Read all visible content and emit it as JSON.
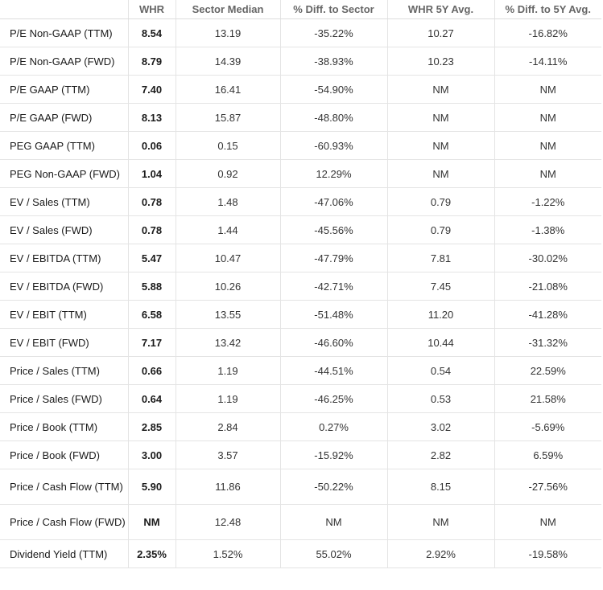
{
  "headers": [
    "",
    "WHR",
    "Sector Median",
    "% Diff. to Sector",
    "WHR 5Y Avg.",
    "% Diff. to 5Y Avg."
  ],
  "rows": [
    {
      "metric": "P/E Non-GAAP (TTM)",
      "whr": "8.54",
      "sector_median": "13.19",
      "diff_sector": "-35.22%",
      "avg_5y": "10.27",
      "diff_5y": "-16.82%"
    },
    {
      "metric": "P/E Non-GAAP (FWD)",
      "whr": "8.79",
      "sector_median": "14.39",
      "diff_sector": "-38.93%",
      "avg_5y": "10.23",
      "diff_5y": "-14.11%"
    },
    {
      "metric": "P/E GAAP (TTM)",
      "whr": "7.40",
      "sector_median": "16.41",
      "diff_sector": "-54.90%",
      "avg_5y": "NM",
      "diff_5y": "NM"
    },
    {
      "metric": "P/E GAAP (FWD)",
      "whr": "8.13",
      "sector_median": "15.87",
      "diff_sector": "-48.80%",
      "avg_5y": "NM",
      "diff_5y": "NM"
    },
    {
      "metric": "PEG GAAP (TTM)",
      "whr": "0.06",
      "sector_median": "0.15",
      "diff_sector": "-60.93%",
      "avg_5y": "NM",
      "diff_5y": "NM"
    },
    {
      "metric": "PEG Non-GAAP (FWD)",
      "whr": "1.04",
      "sector_median": "0.92",
      "diff_sector": "12.29%",
      "avg_5y": "NM",
      "diff_5y": "NM"
    },
    {
      "metric": "EV / Sales (TTM)",
      "whr": "0.78",
      "sector_median": "1.48",
      "diff_sector": "-47.06%",
      "avg_5y": "0.79",
      "diff_5y": "-1.22%"
    },
    {
      "metric": "EV / Sales (FWD)",
      "whr": "0.78",
      "sector_median": "1.44",
      "diff_sector": "-45.56%",
      "avg_5y": "0.79",
      "diff_5y": "-1.38%"
    },
    {
      "metric": "EV / EBITDA (TTM)",
      "whr": "5.47",
      "sector_median": "10.47",
      "diff_sector": "-47.79%",
      "avg_5y": "7.81",
      "diff_5y": "-30.02%"
    },
    {
      "metric": "EV / EBITDA (FWD)",
      "whr": "5.88",
      "sector_median": "10.26",
      "diff_sector": "-42.71%",
      "avg_5y": "7.45",
      "diff_5y": "-21.08%"
    },
    {
      "metric": "EV / EBIT (TTM)",
      "whr": "6.58",
      "sector_median": "13.55",
      "diff_sector": "-51.48%",
      "avg_5y": "11.20",
      "diff_5y": "-41.28%"
    },
    {
      "metric": "EV / EBIT (FWD)",
      "whr": "7.17",
      "sector_median": "13.42",
      "diff_sector": "-46.60%",
      "avg_5y": "10.44",
      "diff_5y": "-31.32%"
    },
    {
      "metric": "Price / Sales (TTM)",
      "whr": "0.66",
      "sector_median": "1.19",
      "diff_sector": "-44.51%",
      "avg_5y": "0.54",
      "diff_5y": "22.59%"
    },
    {
      "metric": "Price / Sales (FWD)",
      "whr": "0.64",
      "sector_median": "1.19",
      "diff_sector": "-46.25%",
      "avg_5y": "0.53",
      "diff_5y": "21.58%"
    },
    {
      "metric": "Price / Book (TTM)",
      "whr": "2.85",
      "sector_median": "2.84",
      "diff_sector": "0.27%",
      "avg_5y": "3.02",
      "diff_5y": "-5.69%"
    },
    {
      "metric": "Price / Book (FWD)",
      "whr": "3.00",
      "sector_median": "3.57",
      "diff_sector": "-15.92%",
      "avg_5y": "2.82",
      "diff_5y": "6.59%"
    },
    {
      "metric": "Price / Cash Flow (TTM)",
      "whr": "5.90",
      "sector_median": "11.86",
      "diff_sector": "-50.22%",
      "avg_5y": "8.15",
      "diff_5y": "-27.56%"
    },
    {
      "metric": "Price / Cash Flow (FWD)",
      "whr": "NM",
      "sector_median": "12.48",
      "diff_sector": "NM",
      "avg_5y": "NM",
      "diff_5y": "NM"
    },
    {
      "metric": "Dividend Yield (TTM)",
      "whr": "2.35%",
      "sector_median": "1.52%",
      "diff_sector": "55.02%",
      "avg_5y": "2.92%",
      "diff_5y": "-19.58%"
    }
  ]
}
